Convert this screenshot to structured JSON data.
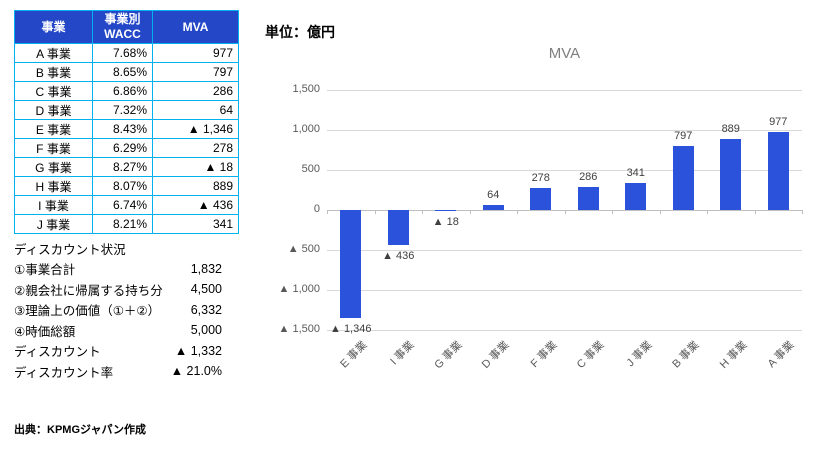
{
  "table": {
    "columns": [
      "事業",
      "事業別\nWACC",
      "MVA"
    ],
    "rows": [
      {
        "name": "A 事業",
        "wacc": "7.68%",
        "mva": "977"
      },
      {
        "name": "B 事業",
        "wacc": "8.65%",
        "mva": "797"
      },
      {
        "name": "C 事業",
        "wacc": "6.86%",
        "mva": "286"
      },
      {
        "name": "D 事業",
        "wacc": "7.32%",
        "mva": "64"
      },
      {
        "name": "E 事業",
        "wacc": "8.43%",
        "mva": "▲ 1,346"
      },
      {
        "name": "F 事業",
        "wacc": "6.29%",
        "mva": "278"
      },
      {
        "name": "G 事業",
        "wacc": "8.27%",
        "mva": "▲ 18"
      },
      {
        "name": "H 事業",
        "wacc": "8.07%",
        "mva": "889"
      },
      {
        "name": "I 事業",
        "wacc": "6.74%",
        "mva": "▲ 436"
      },
      {
        "name": "J 事業",
        "wacc": "8.21%",
        "mva": "341"
      }
    ]
  },
  "discount": {
    "heading": "ディスカウント状況",
    "rows": [
      {
        "label": "①事業合計",
        "value": "1,832"
      },
      {
        "label": "②親会社に帰属する持ち分",
        "value": "4,500"
      },
      {
        "label": "③理論上の価値（①＋②）",
        "value": "6,332"
      },
      {
        "label": "④時価総額",
        "value": "5,000"
      },
      {
        "label": "ディスカウント",
        "value": "▲ 1,332"
      },
      {
        "label": "ディスカウント率",
        "value": "▲ 21.0%"
      }
    ]
  },
  "source": "出典：KPMGジャパン作成",
  "chart": {
    "unit": "単位：億円"
  },
  "chart_data": {
    "type": "bar",
    "title": "MVA",
    "categories": [
      "E 事業",
      "I 事業",
      "G 事業",
      "D 事業",
      "F 事業",
      "C 事業",
      "J 事業",
      "B 事業",
      "H 事業",
      "A 事業"
    ],
    "values": [
      -1346,
      -436,
      -18,
      64,
      278,
      286,
      341,
      797,
      889,
      977
    ],
    "labels": [
      "▲ 1,346",
      "▲ 436",
      "▲ 18",
      "64",
      "278",
      "286",
      "341",
      "797",
      "889",
      "977"
    ],
    "yticks": [
      {
        "value": 1500,
        "label": "1,500"
      },
      {
        "value": 1000,
        "label": "1,000"
      },
      {
        "value": 500,
        "label": "500"
      },
      {
        "value": 0,
        "label": "0"
      },
      {
        "value": -500,
        "label": "▲ 500"
      },
      {
        "value": -1000,
        "label": "▲ 1,000"
      },
      {
        "value": -1500,
        "label": "▲ 1,500"
      }
    ],
    "ylim": [
      -1500,
      1500
    ],
    "grid": true,
    "legend": false,
    "bar_color": "#2B52DA"
  },
  "colors": {
    "table_header_bg": "#2447C8",
    "table_border": "#00B0F0",
    "bar": "#2B52DA",
    "gridline": "#D9D9D9",
    "axis_line": "#BFBFBF",
    "title_gray": "#7F7F7F"
  }
}
